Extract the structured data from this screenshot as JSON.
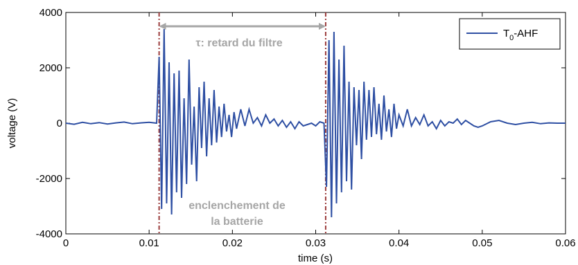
{
  "chart_data": {
    "type": "line",
    "xlabel": "time (s)",
    "ylabel": "voltage (V)",
    "xlim": [
      0,
      0.06
    ],
    "ylim": [
      -4000,
      4000
    ],
    "x_ticks": [
      "0",
      "0.01",
      "0.02",
      "0.03",
      "0.04",
      "0.05",
      "0.06"
    ],
    "y_ticks": [
      "4000",
      "2000",
      "0",
      "-2000",
      "-4000"
    ],
    "grid": false,
    "legend_position": "top-right",
    "colors": {
      "series": "#2e4fa3",
      "markers": "#9b3b3b",
      "annotation": "#a6a6a6"
    },
    "series": [
      {
        "name": "T0-AHF",
        "legend_main": "T",
        "legend_sub": "0",
        "legend_rest": "-AHF",
        "x": [
          0,
          0.001,
          0.002,
          0.003,
          0.004,
          0.005,
          0.006,
          0.007,
          0.008,
          0.009,
          0.01,
          0.0109,
          0.0112,
          0.0115,
          0.0118,
          0.0121,
          0.0124,
          0.0127,
          0.013,
          0.0133,
          0.0136,
          0.0139,
          0.0142,
          0.0145,
          0.0148,
          0.0151,
          0.0154,
          0.0157,
          0.016,
          0.0163,
          0.0166,
          0.0169,
          0.0172,
          0.0175,
          0.0178,
          0.0181,
          0.0184,
          0.0187,
          0.019,
          0.0193,
          0.0196,
          0.0199,
          0.0202,
          0.0205,
          0.021,
          0.0215,
          0.022,
          0.0225,
          0.023,
          0.0235,
          0.024,
          0.0245,
          0.025,
          0.0255,
          0.026,
          0.0265,
          0.027,
          0.0275,
          0.028,
          0.0285,
          0.029,
          0.0295,
          0.03,
          0.0305,
          0.031,
          0.0313,
          0.0316,
          0.0319,
          0.0322,
          0.0325,
          0.0328,
          0.0331,
          0.0334,
          0.0337,
          0.034,
          0.0343,
          0.0346,
          0.0349,
          0.0352,
          0.0355,
          0.0358,
          0.0361,
          0.0364,
          0.0367,
          0.037,
          0.0373,
          0.0376,
          0.0379,
          0.0382,
          0.0385,
          0.0388,
          0.0391,
          0.0394,
          0.0397,
          0.04,
          0.0405,
          0.041,
          0.0415,
          0.042,
          0.0425,
          0.043,
          0.0435,
          0.044,
          0.0445,
          0.045,
          0.0455,
          0.046,
          0.0465,
          0.047,
          0.0475,
          0.048,
          0.0485,
          0.049,
          0.0495,
          0.05,
          0.051,
          0.052,
          0.053,
          0.054,
          0.055,
          0.056,
          0.057,
          0.058,
          0.059,
          0.06
        ],
        "y": [
          0,
          -40,
          30,
          -20,
          20,
          -30,
          10,
          40,
          -20,
          10,
          30,
          0,
          2400,
          -3100,
          3400,
          -2900,
          2200,
          -3300,
          1800,
          -2500,
          1900,
          -2700,
          900,
          -2200,
          2300,
          -1500,
          600,
          -2100,
          1300,
          -900,
          1500,
          -1200,
          900,
          -800,
          1200,
          -700,
          600,
          -500,
          700,
          -300,
          300,
          -500,
          400,
          -200,
          500,
          -100,
          500,
          0,
          200,
          -100,
          300,
          0,
          150,
          -100,
          100,
          -150,
          50,
          -200,
          50,
          -100,
          -50,
          0,
          -100,
          50,
          0,
          -2300,
          3000,
          -3400,
          3300,
          -2900,
          2300,
          -2500,
          2800,
          -2100,
          1500,
          -2400,
          1300,
          -800,
          1200,
          -1300,
          1500,
          -600,
          1200,
          -500,
          1300,
          -400,
          700,
          -600,
          1000,
          -300,
          500,
          -500,
          700,
          -200,
          300,
          -100,
          500,
          -100,
          200,
          -50,
          300,
          -100,
          50,
          -200,
          100,
          -100,
          50,
          0,
          150,
          -50,
          100,
          0,
          -100,
          -150,
          -100,
          50,
          100,
          0,
          -50,
          0,
          30,
          -20,
          10,
          0,
          0
        ]
      }
    ],
    "vertical_markers": [
      0.0112,
      0.0312
    ],
    "arrow": {
      "from": 0.0112,
      "to": 0.0312,
      "y": 3500
    },
    "annotations": {
      "delay": "τ: retard du filtre",
      "switching_line1": "enclenchement de",
      "switching_line2": "la batterie"
    }
  }
}
